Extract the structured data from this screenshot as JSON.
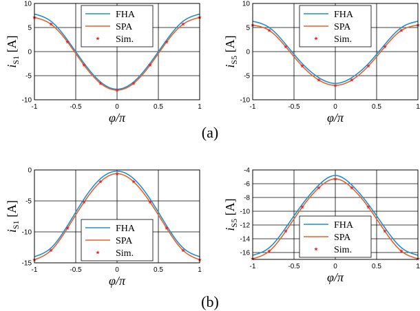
{
  "colors": {
    "FHA": "#1f8fd0",
    "SPA": "#e8602c",
    "Sim.": "#e8262c",
    "grid": "#000000"
  },
  "panel_labels": {
    "a": "(a)",
    "b": "(b)"
  },
  "chart_data": [
    {
      "id": "a-left",
      "type": "line",
      "ylabel_main": "i",
      "ylabel_sub": "S1",
      "ylabel_unit": " [A]",
      "xlabel": "φ/π",
      "xlim": [
        -1,
        1
      ],
      "ylim": [
        -10,
        10
      ],
      "xticks": [
        -1,
        -0.5,
        0,
        0.5,
        1
      ],
      "xtick_labels": [
        "-1",
        "-0.5",
        "0",
        "0.5",
        "1"
      ],
      "yticks": [
        -10,
        -5,
        0,
        5,
        10
      ],
      "ytick_labels": [
        "-10",
        "-5",
        "0",
        "5",
        "10"
      ],
      "grid": true,
      "legend_position": "top-center",
      "x": [
        -1,
        -0.8,
        -0.6,
        -0.4,
        -0.2,
        0,
        0.2,
        0.4,
        0.6,
        0.8,
        1
      ],
      "series": [
        {
          "name": "FHA",
          "kind": "line",
          "values": [
            7.8,
            6.3,
            2.4,
            -2.4,
            -6.3,
            -7.8,
            -6.3,
            -2.4,
            2.4,
            6.3,
            7.8
          ]
        },
        {
          "name": "SPA",
          "kind": "line",
          "values": [
            7.1,
            5.7,
            2.0,
            -2.8,
            -6.6,
            -8.0,
            -6.6,
            -2.8,
            2.0,
            5.7,
            7.1
          ]
        },
        {
          "name": "Sim.",
          "kind": "marker",
          "values": [
            7.1,
            5.7,
            2.0,
            -2.8,
            -6.6,
            -8.0,
            -6.6,
            -2.8,
            2.0,
            5.7,
            7.1
          ]
        }
      ]
    },
    {
      "id": "a-right",
      "type": "line",
      "ylabel_main": "i",
      "ylabel_sub": "S5",
      "ylabel_unit": " [A]",
      "xlabel": "φ/π",
      "xlim": [
        -1,
        1
      ],
      "ylim": [
        -10,
        10
      ],
      "xticks": [
        -1,
        -0.5,
        0,
        0.5,
        1
      ],
      "xtick_labels": [
        "-1",
        "-0.5",
        "0",
        "0.5",
        "1"
      ],
      "yticks": [
        -10,
        -5,
        0,
        5,
        10
      ],
      "ytick_labels": [
        "-10",
        "-5",
        "0",
        "5",
        "10"
      ],
      "grid": true,
      "legend_position": "top-center",
      "x": [
        -1,
        -0.8,
        -0.6,
        -0.4,
        -0.2,
        0,
        0.2,
        0.4,
        0.6,
        0.8,
        1
      ],
      "series": [
        {
          "name": "FHA",
          "kind": "line",
          "values": [
            6.3,
            5.0,
            1.5,
            -2.5,
            -5.4,
            -6.6,
            -5.4,
            -2.5,
            1.5,
            5.0,
            6.3
          ]
        },
        {
          "name": "SPA",
          "kind": "line",
          "values": [
            5.5,
            4.4,
            1.0,
            -3.0,
            -5.9,
            -7.0,
            -5.9,
            -3.0,
            1.0,
            4.4,
            5.5
          ]
        },
        {
          "name": "Sim.",
          "kind": "marker",
          "values": [
            5.5,
            4.4,
            1.0,
            -3.0,
            -5.9,
            -7.0,
            -5.9,
            -3.0,
            1.0,
            4.4,
            5.5
          ]
        }
      ]
    },
    {
      "id": "b-left",
      "type": "line",
      "ylabel_main": "i",
      "ylabel_sub": "S1",
      "ylabel_unit": " [A]",
      "xlabel": "φ/π",
      "xlim": [
        -1,
        1
      ],
      "ylim": [
        -15,
        0
      ],
      "xticks": [
        -1,
        -0.5,
        0,
        0.5,
        1
      ],
      "xtick_labels": [
        "-1",
        "-0.5",
        "0",
        "0.5",
        "1"
      ],
      "yticks": [
        -15,
        -10,
        -5,
        0
      ],
      "ytick_labels": [
        "-15",
        "-10",
        "-5",
        "0"
      ],
      "grid": true,
      "legend_position": "bottom-center",
      "x": [
        -1,
        -0.8,
        -0.6,
        -0.4,
        -0.2,
        0,
        0.2,
        0.4,
        0.6,
        0.8,
        1
      ],
      "series": [
        {
          "name": "FHA",
          "kind": "line",
          "values": [
            -14.0,
            -12.6,
            -9.0,
            -4.7,
            -1.4,
            -0.2,
            -1.4,
            -4.7,
            -9.0,
            -12.6,
            -14.0
          ]
        },
        {
          "name": "SPA",
          "kind": "line",
          "values": [
            -14.5,
            -13.0,
            -9.4,
            -5.2,
            -1.9,
            -0.6,
            -1.9,
            -5.2,
            -9.4,
            -13.0,
            -14.5
          ]
        },
        {
          "name": "Sim.",
          "kind": "marker",
          "values": [
            -14.5,
            -13.0,
            -9.4,
            -5.2,
            -1.9,
            -0.6,
            -1.9,
            -5.2,
            -9.4,
            -13.0,
            -14.5
          ]
        }
      ]
    },
    {
      "id": "b-right",
      "type": "line",
      "ylabel_main": "i",
      "ylabel_sub": "S5",
      "ylabel_unit": " [A]",
      "xlabel": "φ/π",
      "xlim": [
        -1,
        1
      ],
      "ylim": [
        -17,
        -4
      ],
      "xticks": [
        -1,
        -0.5,
        0,
        0.5,
        1
      ],
      "xtick_labels": [
        "-1",
        "-0.5",
        "0",
        "0.5",
        "1"
      ],
      "yticks": [
        -16,
        -14,
        -12,
        -10,
        -8,
        -6,
        -4
      ],
      "ytick_labels": [
        "-16",
        "-14",
        "-12",
        "-10",
        "-8",
        "-6",
        "-4"
      ],
      "grid": true,
      "legend_position": "bottom-center",
      "x": [
        -1,
        -0.8,
        -0.6,
        -0.4,
        -0.2,
        0,
        0.2,
        0.4,
        0.6,
        0.8,
        1
      ],
      "series": [
        {
          "name": "FHA",
          "kind": "line",
          "values": [
            -16.4,
            -15.3,
            -12.4,
            -9.0,
            -6.2,
            -4.8,
            -6.2,
            -9.0,
            -12.4,
            -15.3,
            -16.4
          ]
        },
        {
          "name": "SPA",
          "kind": "line",
          "values": [
            -16.9,
            -15.8,
            -12.9,
            -9.4,
            -6.6,
            -5.3,
            -6.6,
            -9.4,
            -12.9,
            -15.8,
            -16.9
          ]
        },
        {
          "name": "Sim.",
          "kind": "marker",
          "values": [
            -16.9,
            -15.8,
            -12.9,
            -9.4,
            -6.6,
            -5.3,
            -6.6,
            -9.4,
            -12.9,
            -15.8,
            -16.9
          ]
        }
      ]
    }
  ]
}
